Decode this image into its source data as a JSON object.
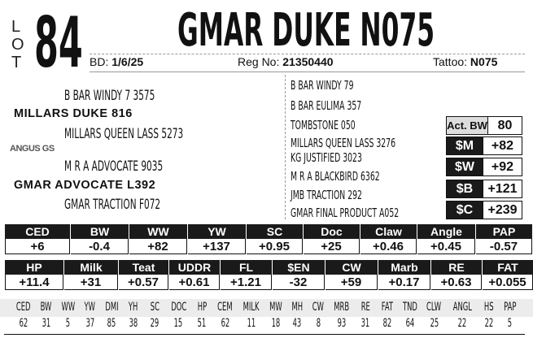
{
  "lot": {
    "label_letters": [
      "L",
      "O",
      "T"
    ],
    "number": "84"
  },
  "animal": {
    "name": "GMAR DUKE N075",
    "bd_label": "BD:",
    "bd": "1/6/25",
    "reg_label": "Reg No:",
    "reg": "21350440",
    "tattoo_label": "Tattoo:",
    "tattoo": "N075"
  },
  "pedigree": {
    "sire": "MILLARS DUKE 816",
    "sire_sire": "B BAR WINDY 7 3575",
    "sire_dam": "MILLARS QUEEN LASS 5273",
    "dam": "GMAR ADVOCATE L392",
    "dam_sire": "M R A ADVOCATE 9035",
    "dam_dam": "GMAR TRACTION F072",
    "third_gen": [
      "B BAR WINDY 79",
      "B BAR EULIMA 357",
      "TOMBSTONE 050",
      "MILLARS QUEEN LASS 3276",
      "KG JUSTIFIED 3023",
      "M R A BLACKBIRD 6362",
      "JMB TRACTION 292",
      "GMAR FINAL PRODUCT A052"
    ]
  },
  "logo": {
    "text": "ANGUS GS"
  },
  "boxes": [
    {
      "label": "Act. BW",
      "value": "80"
    },
    {
      "label": "$M",
      "value": "+82"
    },
    {
      "label": "$W",
      "value": "+92"
    },
    {
      "label": "$B",
      "value": "+121"
    },
    {
      "label": "$C",
      "value": "+239"
    }
  ],
  "epd_row1": [
    {
      "h": "CED",
      "v": "+6"
    },
    {
      "h": "BW",
      "v": "-0.4"
    },
    {
      "h": "WW",
      "v": "+82"
    },
    {
      "h": "YW",
      "v": "+137"
    },
    {
      "h": "SC",
      "v": "+0.95"
    },
    {
      "h": "Doc",
      "v": "+25"
    },
    {
      "h": "Claw",
      "v": "+0.46"
    },
    {
      "h": "Angle",
      "v": "+0.45"
    },
    {
      "h": "PAP",
      "v": "-0.57"
    }
  ],
  "epd_row2": [
    {
      "h": "HP",
      "v": "+11.4"
    },
    {
      "h": "Milk",
      "v": "+31"
    },
    {
      "h": "Teat",
      "v": "+0.57"
    },
    {
      "h": "UDDR",
      "v": "+0.61"
    },
    {
      "h": "FL",
      "v": "+1.21"
    },
    {
      "h": "$EN",
      "v": "-32"
    },
    {
      "h": "CW",
      "v": "+59"
    },
    {
      "h": "Marb",
      "v": "+0.17"
    },
    {
      "h": "RE",
      "v": "+0.63"
    },
    {
      "h": "FAT",
      "v": "+0.055"
    }
  ],
  "percentiles": [
    {
      "h": "CED",
      "v": "62"
    },
    {
      "h": "BW",
      "v": "31"
    },
    {
      "h": "WW",
      "v": "5"
    },
    {
      "h": "YW",
      "v": "37"
    },
    {
      "h": "DMI",
      "v": "85"
    },
    {
      "h": "YH",
      "v": "38"
    },
    {
      "h": "SC",
      "v": "29"
    },
    {
      "h": "DOC",
      "v": "15"
    },
    {
      "h": "HP",
      "v": "51"
    },
    {
      "h": "CEM",
      "v": "62"
    },
    {
      "h": "MILK",
      "v": "11"
    },
    {
      "h": "MW",
      "v": "18"
    },
    {
      "h": "MH",
      "v": "43"
    },
    {
      "h": "CW",
      "v": "8"
    },
    {
      "h": "MRB",
      "v": "93"
    },
    {
      "h": "RE",
      "v": "31"
    },
    {
      "h": "FAT",
      "v": "82"
    },
    {
      "h": "TND",
      "v": "64"
    },
    {
      "h": "CLW",
      "v": "25"
    },
    {
      "h": "ANGL",
      "v": "22"
    },
    {
      "h": "HS",
      "v": "22"
    },
    {
      "h": "PAP",
      "v": "5"
    }
  ]
}
